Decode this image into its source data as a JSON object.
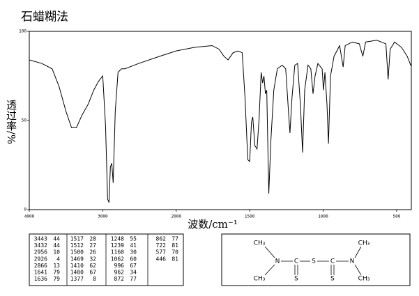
{
  "chart_data": {
    "type": "line",
    "title": "石蜡糊法",
    "xlabel": "波数/cm⁻¹",
    "ylabel": "透过率/%",
    "x": [
      4000,
      3830,
      3689,
      3594,
      3500,
      3425,
      3358,
      3283,
      3200,
      3123,
      3057,
      3000,
      2962,
      2934,
      2915,
      2896,
      2877,
      2858,
      2830,
      2792,
      2745,
      2698,
      2509,
      2226,
      2000,
      1876,
      1756,
      1709,
      1675,
      1647,
      1613,
      1580,
      1551,
      1532,
      1513,
      1500,
      1488,
      1479,
      1465,
      1450,
      1436,
      1422,
      1412,
      1403,
      1393,
      1384,
      1370,
      1355,
      1336,
      1312,
      1279,
      1255,
      1236,
      1226,
      1212,
      1193,
      1174,
      1155,
      1140,
      1126,
      1103,
      1084,
      1069,
      1055,
      1036,
      1007,
      998,
      988,
      974,
      964,
      950,
      926,
      888,
      864,
      850,
      802,
      754,
      730,
      711,
      635,
      573,
      558,
      544,
      514,
      467,
      428,
      404,
      400
    ],
    "series": [
      {
        "color": "#000000",
        "values": [
          84,
          82,
          79,
          69,
          55,
          46,
          46,
          53,
          59,
          67,
          72,
          75,
          47,
          6,
          4,
          24,
          26,
          15,
          55,
          77,
          79,
          79,
          82,
          86,
          89,
          91,
          92,
          90,
          86,
          84,
          88,
          89,
          88,
          63,
          28,
          27,
          49,
          52,
          36,
          34,
          51,
          77,
          71,
          75,
          65,
          67,
          9,
          40,
          67,
          79,
          81,
          79,
          55,
          43,
          63,
          81,
          82,
          59,
          32,
          67,
          81,
          79,
          65,
          75,
          82,
          79,
          67,
          77,
          59,
          37,
          75,
          86,
          92,
          80,
          92,
          94,
          93,
          86,
          94,
          95,
          93,
          73,
          90,
          94,
          91,
          86,
          81,
          82
        ]
      }
    ],
    "xlim": [
      4000,
      400
    ],
    "xticks": [
      4000,
      3000,
      2000,
      1500,
      1000,
      500
    ],
    "ylim": [
      0,
      100
    ],
    "yticks": [
      0,
      50,
      100
    ]
  },
  "peak_table": [
    [
      [
        3443,
        44
      ],
      [
        3432,
        44
      ],
      [
        2956,
        10
      ],
      [
        2926,
        4
      ],
      [
        2866,
        13
      ],
      [
        1641,
        79
      ],
      [
        1636,
        79
      ]
    ],
    [
      [
        1517,
        28
      ],
      [
        1512,
        27
      ],
      [
        1500,
        26
      ],
      [
        1469,
        32
      ],
      [
        1410,
        62
      ],
      [
        1400,
        67
      ],
      [
        1377,
        8
      ]
    ],
    [
      [
        1248,
        55
      ],
      [
        1239,
        41
      ],
      [
        1160,
        30
      ],
      [
        1062,
        60
      ],
      [
        996,
        67
      ],
      [
        962,
        34
      ],
      [
        872,
        77
      ]
    ],
    [
      [
        862,
        77
      ],
      [
        722,
        81
      ],
      [
        577,
        70
      ],
      [
        446,
        81
      ]
    ]
  ],
  "structure": {
    "atoms": [
      "CH₃",
      "N",
      "C",
      "S",
      "C",
      "N",
      "CH₃",
      "CH₃",
      "CH₃",
      "S",
      "S"
    ]
  }
}
